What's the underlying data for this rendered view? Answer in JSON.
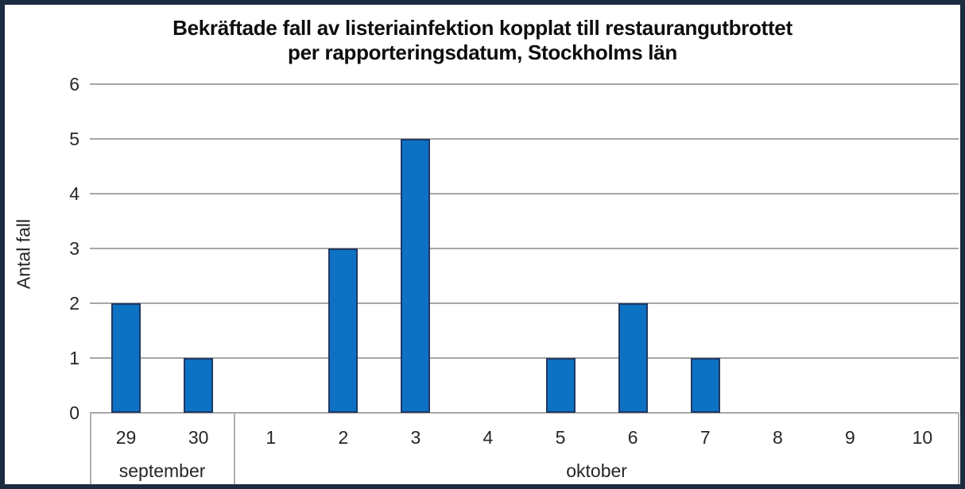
{
  "chart_data": {
    "type": "bar",
    "title": "Bekräftade fall av listeriainfektion kopplat till restaurangutbrottet per rapporteringsdatum, Stockholms län",
    "title_lines": [
      "Bekräftade fall av listeriainfektion kopplat till restaurangutbrottet",
      "per rapporteringsdatum, Stockholms län"
    ],
    "ylabel": "Antal fall",
    "xlabel": "",
    "ylim": [
      0,
      6
    ],
    "yticks": [
      0,
      1,
      2,
      3,
      4,
      5,
      6
    ],
    "categories": [
      "29",
      "30",
      "1",
      "2",
      "3",
      "4",
      "5",
      "6",
      "7",
      "8",
      "9",
      "10"
    ],
    "values": [
      2,
      1,
      0,
      3,
      5,
      0,
      1,
      2,
      1,
      0,
      0,
      0
    ],
    "month_groups": [
      {
        "label": "september",
        "span": 2
      },
      {
        "label": "oktober",
        "span": 10
      }
    ],
    "grid": true,
    "legend": false,
    "colors": {
      "bar_fill": "#0d72c4",
      "bar_border": "#1f3864",
      "gridline": "#a6a6a6",
      "axis_box": "#b0b0b0",
      "frame_border": "#1b2b40",
      "text": "#262626",
      "title_text": "#0d0d0d"
    }
  }
}
